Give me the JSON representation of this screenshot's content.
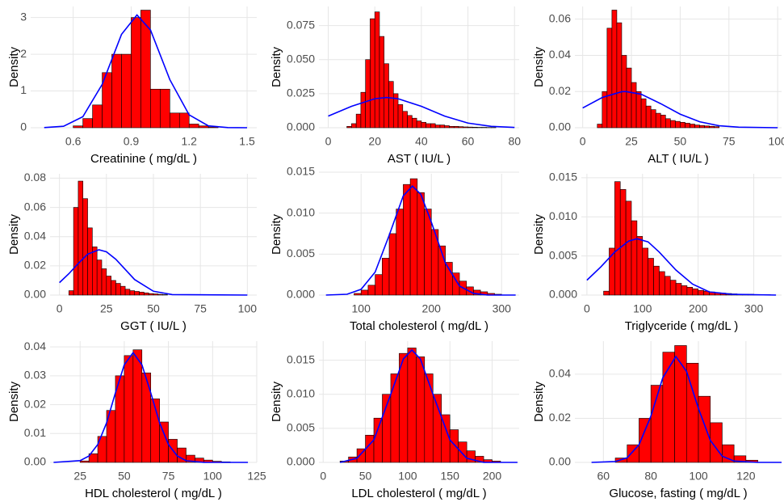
{
  "chart_data": [
    {
      "type": "histogram",
      "x_label": "Creatinine ( mg/dL )",
      "y_label": "Density",
      "color": "#ff0000",
      "grid": true,
      "bins": [
        0.6,
        0.65,
        0.7,
        0.75,
        0.8,
        0.85,
        0.9,
        0.95,
        1,
        1.05,
        1.1,
        1.15,
        1.2,
        1.25,
        1.3,
        1.35
      ],
      "values": [
        0.05,
        0.25,
        0.62,
        1.5,
        2.0,
        2.0,
        3.0,
        3.2,
        1.05,
        1.05,
        0.4,
        0.4,
        0.1,
        0.05,
        0.02
      ],
      "curve": {
        "color": "#0000ff",
        "x": [
          0.45,
          0.55,
          0.65,
          0.75,
          0.85,
          0.93,
          1.0,
          1.1,
          1.2,
          1.3,
          1.4,
          1.5
        ],
        "values": [
          0.003,
          0.04,
          0.3,
          1.18,
          2.54,
          3.07,
          2.66,
          1.31,
          0.35,
          0.05,
          0.005,
          0
        ]
      },
      "xlim": [
        0.38,
        1.55
      ],
      "ylim": [
        0,
        3.3
      ],
      "xticks": [
        0.6,
        0.9,
        1.2,
        1.5
      ],
      "yticks": [
        0,
        1,
        2,
        3
      ]
    },
    {
      "type": "histogram",
      "x_label": "AST ( IU/L )",
      "y_label": "Density",
      "color": "#ff0000",
      "grid": true,
      "bins": [
        8,
        10,
        12,
        14,
        16,
        18,
        20,
        22,
        24,
        26,
        28,
        30,
        32,
        34,
        36,
        38,
        40,
        42,
        44,
        46,
        48,
        50,
        52,
        54,
        56,
        58,
        60,
        62,
        64,
        66,
        68,
        70,
        72
      ],
      "values": [
        0.001,
        0.003,
        0.01,
        0.026,
        0.05,
        0.08,
        0.085,
        0.067,
        0.047,
        0.034,
        0.025,
        0.017,
        0.012,
        0.009,
        0.007,
        0.005,
        0.004,
        0.003,
        0.003,
        0.002,
        0.002,
        0.0015,
        0.001,
        0.001,
        0.0008,
        0.0006,
        0.0005,
        0.0004,
        0.0003,
        0.0003,
        0.0002,
        0.0002
      ],
      "curve": {
        "color": "#0000ff",
        "x": [
          0,
          10,
          20,
          25,
          30,
          40,
          50,
          60,
          70,
          80
        ],
        "values": [
          0.0085,
          0.0157,
          0.0213,
          0.0222,
          0.0213,
          0.0157,
          0.0085,
          0.0034,
          0.001,
          0.0002
        ]
      },
      "xlim": [
        -4,
        82
      ],
      "ylim": [
        0,
        0.089
      ],
      "xticks": [
        0,
        20,
        40,
        60,
        80
      ],
      "yticks": [
        {
          "value": 0,
          "label": "0.000"
        },
        0.025,
        {
          "value": 0.05,
          "label": "0.050"
        },
        0.075
      ]
    },
    {
      "type": "histogram",
      "x_label": "ALT ( IU/L )",
      "y_label": "Density",
      "color": "#ff0000",
      "grid": true,
      "bins": [
        7.5,
        10,
        12.5,
        15,
        17.5,
        20,
        22.5,
        25,
        27.5,
        30,
        32.5,
        35,
        37.5,
        40,
        42.5,
        45,
        47.5,
        50,
        52.5,
        55,
        57.5,
        60,
        62.5,
        65,
        67.5,
        70
      ],
      "values": [
        0.002,
        0.02,
        0.055,
        0.065,
        0.058,
        0.04,
        0.033,
        0.025,
        0.02,
        0.016,
        0.012,
        0.01,
        0.008,
        0.007,
        0.005,
        0.004,
        0.0035,
        0.003,
        0.0025,
        0.002,
        0.0015,
        0.0012,
        0.001,
        0.0008,
        0.0006
      ],
      "curve": {
        "color": "#0000ff",
        "x": [
          0,
          10,
          20,
          22,
          30,
          40,
          50,
          60,
          70,
          80,
          100
        ],
        "values": [
          0.0109,
          0.0167,
          0.0199,
          0.02,
          0.0185,
          0.0133,
          0.0075,
          0.0033,
          0.0011,
          0.0003,
          0
        ]
      },
      "xlim": [
        -4,
        102
      ],
      "ylim": [
        0,
        0.067
      ],
      "xticks": [
        0,
        25,
        50,
        75,
        100
      ],
      "yticks": [
        {
          "value": 0,
          "label": "0.00"
        },
        0.02,
        0.04,
        0.06
      ]
    },
    {
      "type": "histogram",
      "x_label": "GGT ( IU/L )",
      "y_label": "Density",
      "color": "#ff0000",
      "grid": true,
      "bins": [
        5,
        7.5,
        10,
        12.5,
        15,
        17.5,
        20,
        22.5,
        25,
        27.5,
        30,
        32.5,
        35,
        37.5,
        40,
        42.5,
        45,
        47.5,
        50,
        52.5,
        55,
        57.5
      ],
      "values": [
        0.003,
        0.06,
        0.078,
        0.066,
        0.046,
        0.033,
        0.024,
        0.018,
        0.013,
        0.01,
        0.008,
        0.006,
        0.004,
        0.003,
        0.0025,
        0.002,
        0.0015,
        0.001,
        0.0008,
        0.0005,
        0.0003
      ],
      "curve": {
        "color": "#0000ff",
        "x": [
          0,
          5,
          10,
          15,
          21,
          25,
          30,
          40,
          50,
          60,
          100
        ],
        "values": [
          0.0085,
          0.0146,
          0.0216,
          0.028,
          0.031,
          0.0296,
          0.0245,
          0.0106,
          0.0026,
          0.0003,
          0
        ]
      },
      "xlim": [
        -5,
        105
      ],
      "ylim": [
        0,
        0.083
      ],
      "xticks": [
        0,
        25,
        50,
        75,
        100
      ],
      "yticks": [
        {
          "value": 0,
          "label": "0.00"
        },
        0.02,
        0.04,
        0.06,
        0.08
      ]
    },
    {
      "type": "histogram",
      "x_label": "Total cholesterol ( mg/dL )",
      "y_label": "Density",
      "color": "#ff0000",
      "grid": true,
      "bins": [
        90,
        100,
        110,
        120,
        130,
        140,
        150,
        160,
        170,
        180,
        190,
        200,
        210,
        220,
        230,
        240,
        250,
        260,
        270,
        280,
        290,
        300
      ],
      "values": [
        0.0002,
        0.0006,
        0.0012,
        0.0025,
        0.0045,
        0.0075,
        0.0105,
        0.0135,
        0.0142,
        0.0125,
        0.0105,
        0.008,
        0.006,
        0.004,
        0.0027,
        0.0017,
        0.001,
        0.0006,
        0.0004,
        0.0002,
        0.0001
      ],
      "curve": {
        "color": "#0000ff",
        "x": [
          50,
          80,
          100,
          120,
          140,
          160,
          173,
          185,
          200,
          220,
          240,
          260,
          280,
          320
        ],
        "values": [
          0,
          0.0001,
          0.0007,
          0.0028,
          0.0073,
          0.0121,
          0.0133,
          0.0123,
          0.0089,
          0.0039,
          0.0011,
          0.0002,
          0,
          0
        ]
      },
      "xlim": [
        40,
        325
      ],
      "ylim": [
        0,
        0.0148
      ],
      "xticks": [
        100,
        200,
        300
      ],
      "yticks": [
        {
          "value": 0,
          "label": "0.000"
        },
        0.005,
        {
          "value": 0.01,
          "label": "0.010"
        },
        0.015
      ]
    },
    {
      "type": "histogram",
      "x_label": "Triglyceride ( mg/dL )",
      "y_label": "Density",
      "color": "#ff0000",
      "grid": true,
      "bins": [
        30,
        40,
        50,
        60,
        70,
        80,
        90,
        100,
        110,
        120,
        130,
        140,
        150,
        160,
        170,
        180,
        190,
        200,
        210,
        220,
        230,
        240,
        250,
        260,
        270,
        280,
        290,
        300,
        310,
        320,
        330
      ],
      "values": [
        0.0005,
        0.006,
        0.0145,
        0.0135,
        0.012,
        0.0095,
        0.0075,
        0.006,
        0.0047,
        0.0037,
        0.003,
        0.0024,
        0.0019,
        0.0015,
        0.0012,
        0.001,
        0.0008,
        0.0006,
        0.0005,
        0.0004,
        0.0003,
        0.00025,
        0.0002,
        0.00015,
        0.0001,
        0.0001,
        0.0001,
        5e-05,
        5e-05,
        5e-05
      ],
      "curve": {
        "color": "#0000ff",
        "x": [
          0,
          25,
          50,
          75,
          90,
          110,
          130,
          160,
          190,
          220,
          260,
          340
        ],
        "values": [
          0.0019,
          0.0036,
          0.0055,
          0.0069,
          0.0072,
          0.0068,
          0.0055,
          0.0032,
          0.0014,
          0.0004,
          0.0001,
          0
        ]
      },
      "xlim": [
        -10,
        350
      ],
      "ylim": [
        0,
        0.0155
      ],
      "xticks": [
        0,
        100,
        200,
        300
      ],
      "yticks": [
        {
          "value": 0,
          "label": "0.000"
        },
        0.005,
        {
          "value": 0.01,
          "label": "0.010"
        },
        0.015
      ]
    },
    {
      "type": "histogram",
      "x_label": "HDL cholesterol ( mg/dL )",
      "y_label": "Density",
      "color": "#ff0000",
      "grid": true,
      "bins": [
        25,
        30,
        35,
        40,
        45,
        50,
        55,
        60,
        65,
        70,
        75,
        80,
        85,
        90,
        95,
        100,
        105,
        110
      ],
      "values": [
        0.0005,
        0.003,
        0.009,
        0.018,
        0.03,
        0.037,
        0.039,
        0.031,
        0.022,
        0.014,
        0.008,
        0.005,
        0.0025,
        0.0015,
        0.0008,
        0.0004,
        0.0002
      ],
      "curve": {
        "color": "#0000ff",
        "x": [
          10,
          25,
          30,
          35,
          40,
          45,
          50,
          55,
          60,
          65,
          70,
          75,
          80,
          85,
          95,
          120
        ],
        "values": [
          0,
          0.0006,
          0.0022,
          0.0062,
          0.0137,
          0.0241,
          0.0338,
          0.038,
          0.0338,
          0.0241,
          0.0137,
          0.0062,
          0.0022,
          0.0006,
          0,
          0
        ]
      },
      "xlim": [
        8,
        125
      ],
      "ylim": [
        0,
        0.042
      ],
      "xticks": [
        25,
        50,
        75,
        100,
        125
      ],
      "yticks": [
        {
          "value": 0,
          "label": "0.00"
        },
        0.01,
        0.02,
        0.03,
        0.04
      ]
    },
    {
      "type": "histogram",
      "x_label": "LDL cholesterol ( mg/dL )",
      "y_label": "Density",
      "color": "#ff0000",
      "grid": true,
      "bins": [
        20,
        30,
        40,
        50,
        60,
        70,
        80,
        90,
        100,
        110,
        120,
        130,
        140,
        150,
        160,
        170,
        180,
        190,
        200,
        210
      ],
      "values": [
        0.0002,
        0.0008,
        0.002,
        0.004,
        0.0065,
        0.01,
        0.013,
        0.016,
        0.0168,
        0.0155,
        0.013,
        0.01,
        0.007,
        0.0048,
        0.003,
        0.0017,
        0.0009,
        0.0004,
        0.0002
      ],
      "curve": {
        "color": "#0000ff",
        "x": [
          20,
          40,
          60,
          80,
          95,
          105,
          115,
          130,
          150,
          170,
          190,
          230
        ],
        "values": [
          0,
          0.0006,
          0.0033,
          0.01,
          0.0152,
          0.0165,
          0.0152,
          0.01,
          0.0033,
          0.0006,
          0,
          0
        ]
      },
      "xlim": [
        -5,
        232
      ],
      "ylim": [
        0,
        0.0178
      ],
      "xticks": [
        0,
        50,
        100,
        150,
        200
      ],
      "yticks": [
        {
          "value": 0,
          "label": "0.000"
        },
        0.005,
        {
          "value": 0.01,
          "label": "0.010"
        },
        0.015
      ]
    },
    {
      "type": "histogram",
      "x_label": "Glucose, fasting ( mg/dL )",
      "y_label": "Density",
      "color": "#ff0000",
      "grid": true,
      "bins": [
        65,
        70,
        75,
        80,
        85,
        90,
        95,
        100,
        105,
        110,
        115,
        120,
        125
      ],
      "values": [
        0.002,
        0.008,
        0.02,
        0.035,
        0.05,
        0.053,
        0.045,
        0.03,
        0.018,
        0.008,
        0.003,
        0.001
      ],
      "curve": {
        "color": "#0000ff",
        "x": [
          55,
          65,
          70,
          75,
          80,
          85,
          90.5,
          95,
          100,
          105,
          110,
          115,
          125,
          135
        ],
        "values": [
          0,
          0.0004,
          0.0021,
          0.008,
          0.021,
          0.0384,
          0.048,
          0.0413,
          0.0245,
          0.01,
          0.0028,
          0.0006,
          0,
          0
        ]
      },
      "xlim": [
        48,
        135
      ],
      "ylim": [
        0,
        0.055
      ],
      "xticks": [
        60,
        80,
        100,
        120
      ],
      "yticks": [
        {
          "value": 0,
          "label": "0.00"
        },
        0.02,
        0.04
      ]
    }
  ]
}
